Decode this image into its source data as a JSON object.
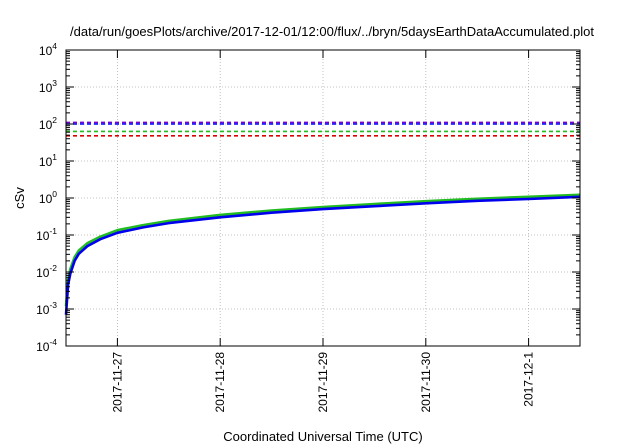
{
  "chart_data": {
    "type": "line",
    "title": "/data/run/goesPlots/archive/2017-12-01/12:00/flux/../bryn/5daysEarthDataAccumulated.plot",
    "xlabel": "Coordinated Universal Time (UTC)",
    "ylabel": "cSv",
    "y_scale": "log",
    "ylim": [
      0.0001,
      10000
    ],
    "xlim": [
      "2017-11-26 12:00",
      "2017-12-01 12:00"
    ],
    "x_ticks": [
      "2017-11-27",
      "2017-11-28",
      "2017-11-29",
      "2017-11-30",
      "2017-12-1"
    ],
    "y_ticks": [
      {
        "value": 0.0001,
        "base": "10",
        "exp": "-4"
      },
      {
        "value": 0.001,
        "base": "10",
        "exp": "-3"
      },
      {
        "value": 0.01,
        "base": "10",
        "exp": "-2"
      },
      {
        "value": 0.1,
        "base": "10",
        "exp": "-1"
      },
      {
        "value": 1,
        "base": "10",
        "exp": "0"
      },
      {
        "value": 10,
        "base": "10",
        "exp": "1"
      },
      {
        "value": 100,
        "base": "10",
        "exp": "2"
      },
      {
        "value": 1000,
        "base": "10",
        "exp": "3"
      },
      {
        "value": 10000,
        "base": "10",
        "exp": "4"
      }
    ],
    "grid": true,
    "reference_lines": [
      {
        "value": 110,
        "color": "#7a00cc",
        "style": "dashed"
      },
      {
        "value": 100,
        "color": "#0000ff",
        "style": "dashed"
      },
      {
        "value": 63,
        "color": "#22bb22",
        "style": "dashed"
      },
      {
        "value": 48,
        "color": "#dd0000",
        "style": "dashed"
      }
    ],
    "series": [
      {
        "color": "#22bb22",
        "x": [
          "2017-11-26 12:00",
          "2017-11-26 12:30",
          "2017-11-26 13:00",
          "2017-11-26 14:00",
          "2017-11-26 15:00",
          "2017-11-26 17:00",
          "2017-11-26 20:00",
          "2017-11-27 00:00",
          "2017-11-27 06:00",
          "2017-11-27 12:00",
          "2017-11-28 00:00",
          "2017-11-28 12:00",
          "2017-11-29 00:00",
          "2017-11-29 12:00",
          "2017-11-30 00:00",
          "2017-11-30 12:00",
          "2017-12-01 00:00",
          "2017-12-01 12:00"
        ],
        "values": [
          0.0012,
          0.006,
          0.012,
          0.025,
          0.038,
          0.06,
          0.09,
          0.135,
          0.185,
          0.24,
          0.35,
          0.46,
          0.57,
          0.69,
          0.82,
          0.95,
          1.08,
          1.22
        ]
      },
      {
        "color": "#0000ee",
        "x": [
          "2017-11-26 12:00",
          "2017-11-26 12:30",
          "2017-11-26 13:00",
          "2017-11-26 14:00",
          "2017-11-26 15:00",
          "2017-11-26 17:00",
          "2017-11-26 20:00",
          "2017-11-27 00:00",
          "2017-11-27 06:00",
          "2017-11-27 12:00",
          "2017-11-28 00:00",
          "2017-11-28 12:00",
          "2017-11-29 00:00",
          "2017-11-29 12:00",
          "2017-11-30 00:00",
          "2017-11-30 12:00",
          "2017-12-01 00:00",
          "2017-12-01 12:00"
        ],
        "values": [
          0.0007,
          0.0045,
          0.009,
          0.02,
          0.031,
          0.05,
          0.077,
          0.115,
          0.16,
          0.21,
          0.3,
          0.4,
          0.5,
          0.6,
          0.72,
          0.84,
          0.94,
          1.08
        ]
      }
    ]
  }
}
